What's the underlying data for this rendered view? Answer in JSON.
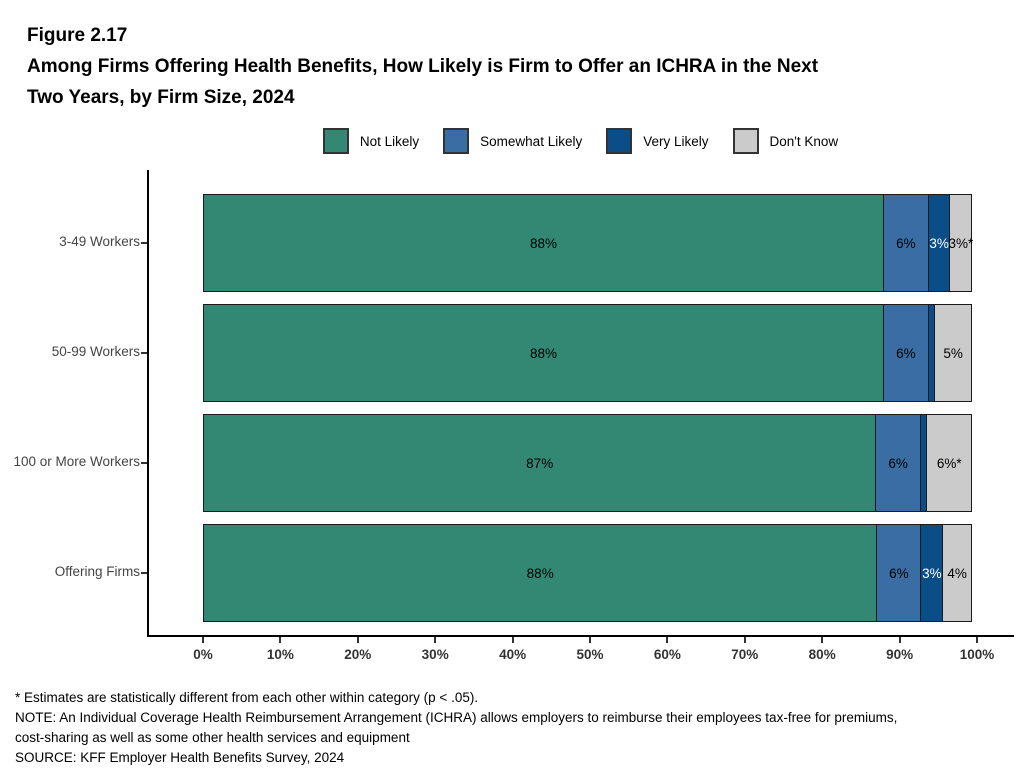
{
  "figure": {
    "label": "Figure 2.17",
    "title_line1": "Among Firms Offering Health Benefits, How Likely is Firm to Offer an ICHRA in the Next",
    "title_line2": "Two Years, by Firm Size, 2024"
  },
  "chart_data": {
    "type": "bar",
    "orientation": "horizontal",
    "stacked": true,
    "title": "Among Firms Offering Health Benefits, How Likely is Firm to Offer an ICHRA in the Next Two Years, by Firm Size, 2024",
    "categories": [
      "3-49 Workers",
      "50-99 Workers",
      "100 or More Workers",
      "Offering Firms"
    ],
    "series": [
      {
        "name": "Not Likely",
        "color": "#338874",
        "label_color": "#000000",
        "values": [
          88,
          88,
          87,
          88
        ],
        "labels": [
          "88%",
          "88%",
          "87%",
          "88%"
        ]
      },
      {
        "name": "Somewhat Likely",
        "color": "#3a6da3",
        "label_color": "#000000",
        "values": [
          6,
          6,
          6,
          6
        ],
        "labels": [
          "6%",
          "6%",
          "6%",
          "6%"
        ]
      },
      {
        "name": "Very Likely",
        "color": "#0b4e87",
        "label_color": "#ffffff",
        "values": [
          3,
          1,
          1,
          3
        ],
        "labels": [
          "3%",
          "",
          "",
          "3%"
        ]
      },
      {
        "name": "Don't Know",
        "color": "#cbcbcb",
        "label_color": "#000000",
        "values": [
          3,
          5,
          6,
          4
        ],
        "labels": [
          "3%*",
          "5%",
          "6%*",
          "4%"
        ]
      }
    ],
    "xlabel": "",
    "ylabel": "",
    "xlim": [
      0,
      100
    ],
    "x_ticks": [
      "0%",
      "10%",
      "20%",
      "30%",
      "40%",
      "50%",
      "60%",
      "70%",
      "80%",
      "90%",
      "100%"
    ],
    "grid": false,
    "legend_position": "top-center",
    "bar_border_color": "#1a1a1a"
  },
  "footnotes": [
    "* Estimates are statistically different from each other within category (p < .05).",
    "NOTE: An Individual Coverage Health Reimbursement Arrangement (ICHRA) allows employers to reimburse their employees tax-free for premiums,",
    "cost-sharing as well as some other health services and equipment",
    "SOURCE: KFF Employer Health Benefits Survey, 2024"
  ]
}
